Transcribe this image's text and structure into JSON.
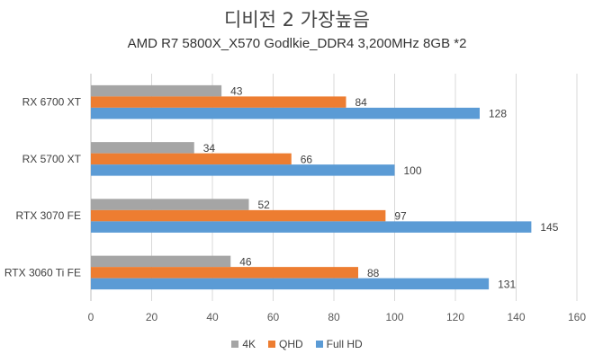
{
  "chart_data": {
    "type": "bar",
    "orientation": "horizontal",
    "title": "디비전 2 가장높음",
    "subtitle": "AMD R7 5800X_X570 Godlkie_DDR4 3,200MHz 8GB *2",
    "categories": [
      "RX 6700 XT",
      "RX 5700 XT",
      "RTX 3070 FE",
      "RTX 3060 Ti FE"
    ],
    "series": [
      {
        "name": "4K",
        "color": "#a5a5a5",
        "values": [
          43,
          34,
          52,
          46
        ]
      },
      {
        "name": "QHD",
        "color": "#ed7d31",
        "values": [
          84,
          66,
          97,
          88
        ]
      },
      {
        "name": "Full HD",
        "color": "#5b9bd5",
        "values": [
          128,
          100,
          145,
          131
        ]
      }
    ],
    "xlim": [
      0,
      160
    ],
    "xticks": [
      "0",
      "20",
      "40",
      "60",
      "80",
      "100",
      "120",
      "140",
      "160"
    ],
    "grid": true,
    "legend_position": "bottom"
  }
}
